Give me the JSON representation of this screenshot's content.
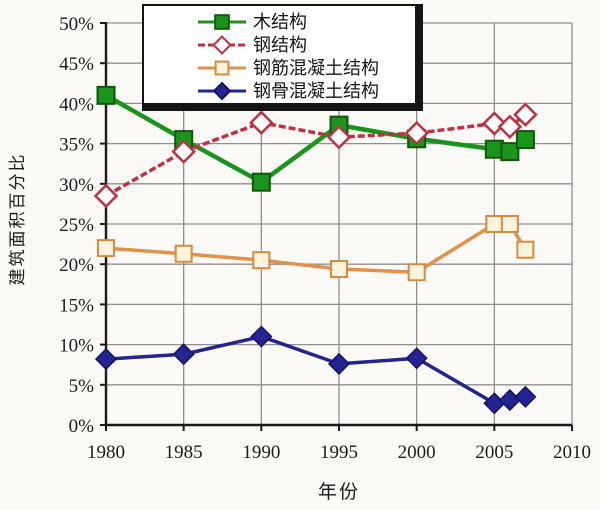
{
  "chart_data": {
    "type": "line",
    "title": "",
    "xlabel": "年份",
    "ylabel": "建筑面积百分比",
    "xlim": [
      1980,
      2010
    ],
    "ylim": [
      0,
      50
    ],
    "grid": true,
    "legend_position": "top-center",
    "x_tick_labels": [
      "1980",
      "1985",
      "1990",
      "1995",
      "2000",
      "2005",
      "2010"
    ],
    "y_tick_labels": [
      "0%",
      "5%",
      "10%",
      "15%",
      "20%",
      "25%",
      "30%",
      "35%",
      "40%",
      "45%",
      "50%"
    ],
    "x": [
      1980,
      1985,
      1990,
      1995,
      2000,
      2005,
      2006,
      2007
    ],
    "series": [
      {
        "key": "wood",
        "name": "木结构",
        "values": [
          41,
          35.5,
          30.2,
          37.3,
          35.6,
          34.3,
          34,
          35.5
        ],
        "color": "#1b941b",
        "marker": "square-filled",
        "marker_fill": "#1b941b",
        "marker_stroke": "#0a5a0a",
        "marker_size": 17,
        "line_width": 4.5,
        "dash": ""
      },
      {
        "key": "steel",
        "name": "钢结构",
        "values": [
          28.5,
          34,
          37.6,
          35.8,
          36.3,
          37.5,
          37.1,
          38.6
        ],
        "color": "#bf3142",
        "marker": "diamond-open",
        "marker_fill": "#ffffff",
        "marker_stroke": "#bf3142",
        "marker_size": 21,
        "line_width": 3.5,
        "dash": "7 3"
      },
      {
        "key": "reinforced-concrete",
        "name": "钢筋混凝土结构",
        "values": [
          22,
          21.3,
          20.5,
          19.4,
          19,
          25,
          25,
          21.8
        ],
        "color": "#e2914a",
        "marker": "square-open",
        "marker_fill": "#fdf4dd",
        "marker_stroke": "#d98a3e",
        "marker_size": 16,
        "line_width": 3.5,
        "dash": ""
      },
      {
        "key": "steel-reinforced-concrete",
        "name": "钢骨混凝土结构",
        "values": [
          8.2,
          8.8,
          11,
          7.6,
          8.3,
          2.7,
          3.1,
          3.5
        ],
        "color": "#232394",
        "marker": "diamond-filled",
        "marker_fill": "#232394",
        "marker_stroke": "#15155e",
        "marker_size": 20,
        "line_width": 3.5,
        "dash": ""
      }
    ],
    "style": {
      "background": "#fbfaf7",
      "grid_color": "#8f8f8f",
      "axis_color": "#1a1a1a",
      "legend_border_color": "#141414",
      "legend_background": "#fefefe"
    }
  }
}
